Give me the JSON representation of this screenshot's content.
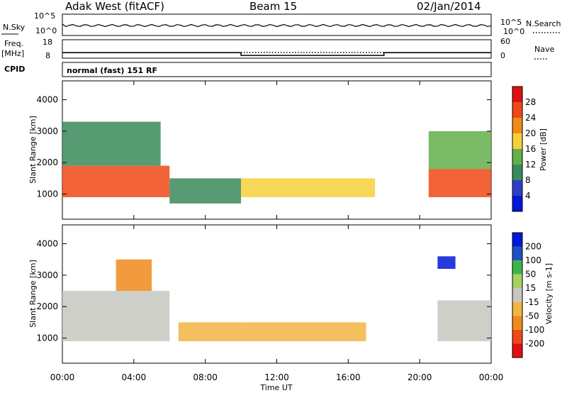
{
  "header": {
    "station": "Adak West (fitACF)",
    "beam": "Beam 15",
    "date": "02/Jan/2014"
  },
  "top_labels": {
    "nsky": "N.Sky",
    "nsky_ticks": [
      "10^5",
      "10^0"
    ],
    "nsearch": "N.Search",
    "freq": "Freq.",
    "freq_unit": "[MHz]",
    "freq_ticks": [
      "18",
      "8"
    ],
    "nave": "Nave",
    "nave_ticks": [
      "60",
      "0"
    ],
    "cpid": "CPID",
    "cpid_value": "normal (fast) 151 RF"
  },
  "colors": {
    "power_scale": [
      "#0018d8",
      "#2e3fc4",
      "#3a8a5a",
      "#62b04a",
      "#f4d03a",
      "#f08a1a",
      "#f04818",
      "#e01010"
    ],
    "velocity_scale": [
      "#e01010",
      "#f04818",
      "#f08a1a",
      "#f2b442",
      "#c7c7c0",
      "#a8d060",
      "#3cb44a",
      "#2050c0",
      "#0018d8"
    ]
  },
  "chart_data": [
    {
      "type": "heatmap",
      "title": "Power",
      "xlabel": "Time UT",
      "ylabel": "Slant Range [km]",
      "x_ticks": [
        "00:00",
        "04:00",
        "08:00",
        "12:00",
        "16:00",
        "20:00",
        "00:00"
      ],
      "y_ticks": [
        1000,
        2000,
        3000,
        4000
      ],
      "ylim": [
        200,
        4600
      ],
      "colorbar_label": "Power [dB]",
      "colorbar_ticks": [
        4,
        8,
        12,
        16,
        20,
        24,
        28
      ],
      "regions": [
        {
          "t": [
            0.0,
            6.0
          ],
          "r": [
            900,
            1900
          ],
          "level": 26
        },
        {
          "t": [
            0.0,
            5.5
          ],
          "r": [
            1900,
            3300
          ],
          "level": 10
        },
        {
          "t": [
            6.0,
            10.0
          ],
          "r": [
            700,
            1500
          ],
          "level": 8
        },
        {
          "t": [
            10.0,
            17.5
          ],
          "r": [
            900,
            1500
          ],
          "level": 18
        },
        {
          "t": [
            20.5,
            24.0
          ],
          "r": [
            900,
            1800
          ],
          "level": 27
        },
        {
          "t": [
            20.5,
            24.0
          ],
          "r": [
            1800,
            3000
          ],
          "level": 12
        }
      ]
    },
    {
      "type": "heatmap",
      "title": "Velocity",
      "xlabel": "Time UT",
      "ylabel": "Slant Range [km]",
      "x_ticks": [
        "00:00",
        "04:00",
        "08:00",
        "12:00",
        "16:00",
        "20:00",
        "00:00"
      ],
      "y_ticks": [
        1000,
        2000,
        3000,
        4000
      ],
      "ylim": [
        200,
        4600
      ],
      "colorbar_label": "Velocity [m s-1]",
      "colorbar_ticks": [
        200,
        100,
        50,
        15,
        -15,
        -50,
        -100,
        -200
      ],
      "regions": [
        {
          "t": [
            0.0,
            6.0
          ],
          "r": [
            900,
            2500
          ],
          "level": 0
        },
        {
          "t": [
            3.0,
            5.0
          ],
          "r": [
            2500,
            3500
          ],
          "level": -100
        },
        {
          "t": [
            6.5,
            10.0
          ],
          "r": [
            900,
            1500
          ],
          "level": -50
        },
        {
          "t": [
            10.0,
            17.0
          ],
          "r": [
            900,
            1500
          ],
          "level": -50
        },
        {
          "t": [
            21.0,
            24.0
          ],
          "r": [
            900,
            2200
          ],
          "level": 0
        },
        {
          "t": [
            21.0,
            22.0
          ],
          "r": [
            3200,
            3600
          ],
          "level": 200
        }
      ]
    }
  ],
  "top_series": {
    "freq_mhz": [
      {
        "t": 0,
        "v": 11
      },
      {
        "t": 10,
        "v": 11
      },
      {
        "t": 10,
        "v": 9.5
      },
      {
        "t": 18,
        "v": 9.5
      },
      {
        "t": 18,
        "v": 11
      },
      {
        "t": 24,
        "v": 11
      }
    ]
  }
}
